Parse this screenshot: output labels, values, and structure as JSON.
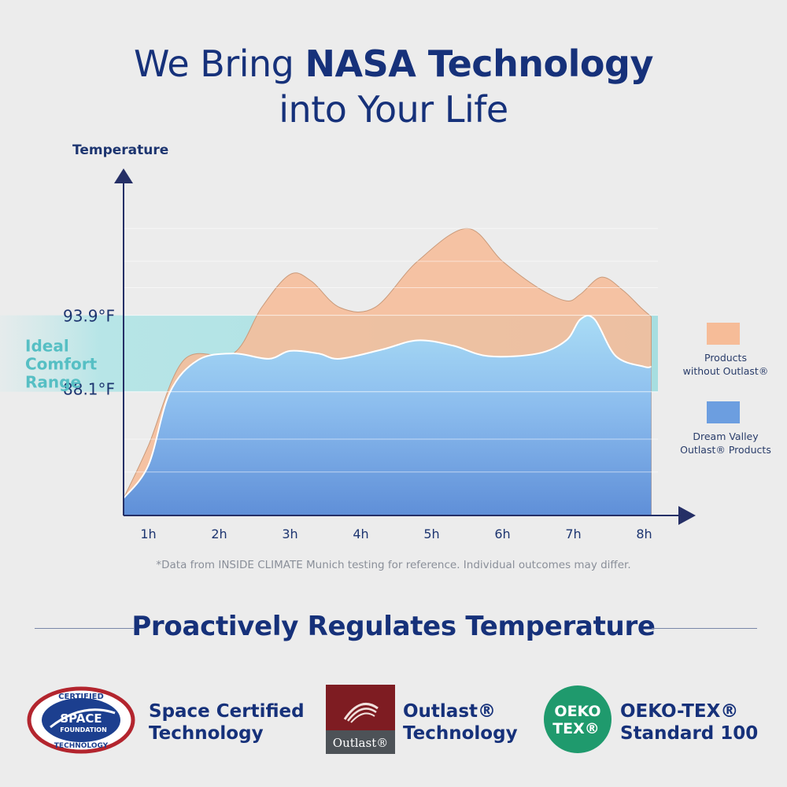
{
  "header": {
    "title_pre": "We Bring ",
    "title_bold": "NASA Technology",
    "title_line2": "into Your Life"
  },
  "chart_data": {
    "type": "area",
    "ylabel": "Temperature",
    "x_ticks": [
      "1h",
      "2h",
      "3h",
      "4h",
      "5h",
      "6h",
      "7h",
      "8h"
    ],
    "y_ticks": [
      "93.9°F",
      "88.1°F"
    ],
    "band_label": "Ideal\nComfort\nRange",
    "series": [
      {
        "name": "Products without Outlast®",
        "color": "#f6bc98",
        "points": [
          [
            0.65,
            80.0
          ],
          [
            1.0,
            84.0
          ],
          [
            1.5,
            90.5
          ],
          [
            2.2,
            91.0
          ],
          [
            2.6,
            94.5
          ],
          [
            3.0,
            97.0
          ],
          [
            3.3,
            96.5
          ],
          [
            3.7,
            94.5
          ],
          [
            4.2,
            94.5
          ],
          [
            4.8,
            98.0
          ],
          [
            5.5,
            100.5
          ],
          [
            6.0,
            98.0
          ],
          [
            6.5,
            96.0
          ],
          [
            6.9,
            95.0
          ],
          [
            7.1,
            95.5
          ],
          [
            7.4,
            96.8
          ],
          [
            7.7,
            95.8
          ],
          [
            7.95,
            94.5
          ],
          [
            8.1,
            93.8
          ]
        ]
      },
      {
        "name": "Dream Valley Outlast® Products",
        "color": "#6c9ee0",
        "points": [
          [
            0.65,
            80.0
          ],
          [
            1.0,
            82.5
          ],
          [
            1.3,
            88.0
          ],
          [
            1.7,
            90.5
          ],
          [
            2.2,
            91.0
          ],
          [
            2.7,
            90.6
          ],
          [
            3.0,
            91.2
          ],
          [
            3.4,
            91.0
          ],
          [
            3.7,
            90.6
          ],
          [
            4.3,
            91.3
          ],
          [
            4.8,
            92.0
          ],
          [
            5.3,
            91.6
          ],
          [
            5.8,
            90.8
          ],
          [
            6.5,
            91.0
          ],
          [
            6.9,
            92.0
          ],
          [
            7.1,
            93.6
          ],
          [
            7.3,
            93.6
          ],
          [
            7.6,
            90.8
          ],
          [
            8.0,
            90.0
          ],
          [
            8.1,
            90.0
          ]
        ]
      }
    ],
    "ideal_range": [
      88.1,
      93.9
    ],
    "x_range": [
      0.65,
      8.6
    ],
    "y_range": [
      78.7,
      103.5
    ]
  },
  "legend": [
    {
      "label_line1": "Products",
      "label_line2": "without Outlast®",
      "color": "#f6bc98"
    },
    {
      "label_line1": "Dream Valley",
      "label_line2": "Outlast® Products",
      "color": "#6c9ee0"
    }
  ],
  "note": "*Data from INSIDE CLIMATE Munich testing for reference. Individual outcomes may differ.",
  "subtitle": "Proactively Regulates Temperature",
  "badges": [
    {
      "logo_text": "CERTIFIED SPACE FOUNDATION TECHNOLOGY",
      "line1": "Space Certified",
      "line2": "Technology"
    },
    {
      "logo_text": "Outlast®",
      "line1": "Outlast®",
      "line2": "Technology"
    },
    {
      "logo_text": "OEKO TEX®",
      "line1": "OEKO-TEX®",
      "line2": "Standard 100"
    }
  ]
}
